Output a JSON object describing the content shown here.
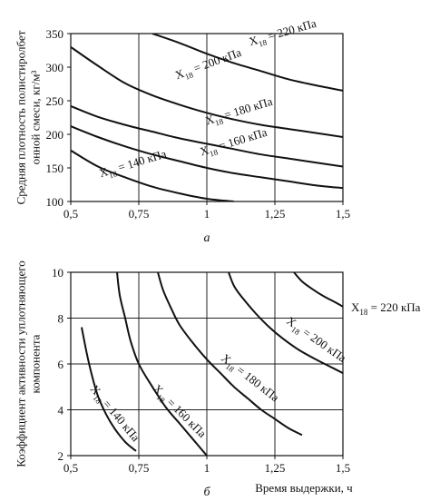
{
  "chart_data": [
    {
      "type": "line",
      "panel_label": "а",
      "xlabel": "",
      "ylabel": "Средняя плотность полистиролбетонной смеси, кг/м³",
      "xlim": [
        0.5,
        1.5
      ],
      "ylim": [
        100,
        350
      ],
      "x_ticks": [
        "0,5",
        "0,75",
        "1",
        "1,25",
        "1,5"
      ],
      "y_ticks": [
        "100",
        "150",
        "200",
        "250",
        "300",
        "350"
      ],
      "grid": "vertical",
      "series": [
        {
          "name": "X18 = 140 кПа",
          "x": [
            0.5,
            0.6,
            0.7,
            0.8,
            0.9,
            1.0,
            1.1
          ],
          "y": [
            176,
            152,
            136,
            122,
            112,
            104,
            100
          ]
        },
        {
          "name": "X18 = 160 кПа",
          "x": [
            0.5,
            0.6,
            0.7,
            0.8,
            0.9,
            1.0,
            1.1,
            1.2,
            1.3,
            1.4,
            1.5
          ],
          "y": [
            212,
            196,
            182,
            170,
            160,
            150,
            142,
            136,
            130,
            124,
            120
          ]
        },
        {
          "name": "X18 = 180 кПа",
          "x": [
            0.5,
            0.6,
            0.7,
            0.8,
            0.9,
            1.0,
            1.1,
            1.2,
            1.3,
            1.4,
            1.5
          ],
          "y": [
            242,
            226,
            214,
            204,
            194,
            186,
            178,
            170,
            164,
            158,
            152
          ]
        },
        {
          "name": "X18 = 200 кПа",
          "x": [
            0.5,
            0.6,
            0.7,
            0.8,
            0.9,
            1.0,
            1.1,
            1.2,
            1.3,
            1.4,
            1.5
          ],
          "y": [
            330,
            302,
            276,
            258,
            244,
            232,
            222,
            214,
            208,
            202,
            196
          ]
        },
        {
          "name": "X18 = 220 кПа",
          "x": [
            0.8,
            0.9,
            1.0,
            1.1,
            1.2,
            1.3,
            1.4,
            1.5
          ],
          "y": [
            350,
            336,
            320,
            306,
            294,
            282,
            273,
            265
          ]
        }
      ],
      "labels": [
        {
          "text": "X18 = 140 кПа",
          "x": 0.61,
          "y": 136,
          "rotate": -17
        },
        {
          "text": "X18 = 160 кПа",
          "x": 0.98,
          "y": 168,
          "rotate": -17
        },
        {
          "text": "X18 = 180 кПа",
          "x": 1.0,
          "y": 214,
          "rotate": -17
        },
        {
          "text": "X18 = 200 кПа",
          "x": 0.89,
          "y": 282,
          "rotate": -20
        },
        {
          "text": "X18 = 220 кПа",
          "x": 1.16,
          "y": 332,
          "rotate": -16
        }
      ]
    },
    {
      "type": "line",
      "panel_label": "б",
      "xlabel": "Время выдержки, ч",
      "ylabel": "Коэффициент активности уплотняющего компонента",
      "xlim": [
        0.5,
        1.5
      ],
      "ylim": [
        2,
        10
      ],
      "x_ticks": [
        "0,5",
        "0,75",
        "1",
        "1,25",
        "1,5"
      ],
      "y_ticks": [
        "2",
        "4",
        "6",
        "8",
        "10"
      ],
      "grid": "both",
      "series": [
        {
          "name": "X18 = 140 кПа",
          "x": [
            0.54,
            0.56,
            0.58,
            0.6,
            0.63,
            0.66,
            0.7,
            0.74
          ],
          "y": [
            7.6,
            6.4,
            5.4,
            4.6,
            3.8,
            3.2,
            2.6,
            2.2
          ]
        },
        {
          "name": "X18 = 160 кПа",
          "x": [
            0.67,
            0.68,
            0.7,
            0.72,
            0.75,
            0.8,
            0.85,
            0.9,
            0.95,
            1.0
          ],
          "y": [
            10,
            9.0,
            8.0,
            7.0,
            6.0,
            5.0,
            4.1,
            3.4,
            2.7,
            2.0
          ]
        },
        {
          "name": "X18 = 180 кПа",
          "x": [
            0.82,
            0.84,
            0.87,
            0.9,
            0.95,
            1.0,
            1.05,
            1.1,
            1.15,
            1.2,
            1.25,
            1.3,
            1.35
          ],
          "y": [
            10,
            9.2,
            8.4,
            7.7,
            6.9,
            6.2,
            5.6,
            5.0,
            4.5,
            4.0,
            3.6,
            3.2,
            2.9
          ]
        },
        {
          "name": "X18 = 200 кПа",
          "x": [
            1.08,
            1.1,
            1.13,
            1.18,
            1.23,
            1.28,
            1.34,
            1.4,
            1.45,
            1.5
          ],
          "y": [
            10,
            9.4,
            8.9,
            8.2,
            7.6,
            7.1,
            6.6,
            6.2,
            5.9,
            5.6
          ]
        },
        {
          "name": "X18 = 220 кПа",
          "x": [
            1.32,
            1.35,
            1.39,
            1.43,
            1.47,
            1.5
          ],
          "y": [
            10,
            9.6,
            9.25,
            8.95,
            8.7,
            8.5
          ]
        }
      ],
      "labels": [
        {
          "text": "X18 = 140 кПа",
          "x": 0.57,
          "y": 4.9,
          "rotate": 50
        },
        {
          "text": "X18 = 160 кПа",
          "x": 0.8,
          "y": 4.9,
          "rotate": 45
        },
        {
          "text": "X18 = 180 кПа",
          "x": 1.05,
          "y": 6.2,
          "rotate": 38
        },
        {
          "text": "X18 = 200 кПа",
          "x": 1.29,
          "y": 7.8,
          "rotate": 35
        },
        {
          "text": "X18 = 220 кПа",
          "x": 1.53,
          "y": 8.3,
          "rotate": 0
        }
      ]
    }
  ]
}
